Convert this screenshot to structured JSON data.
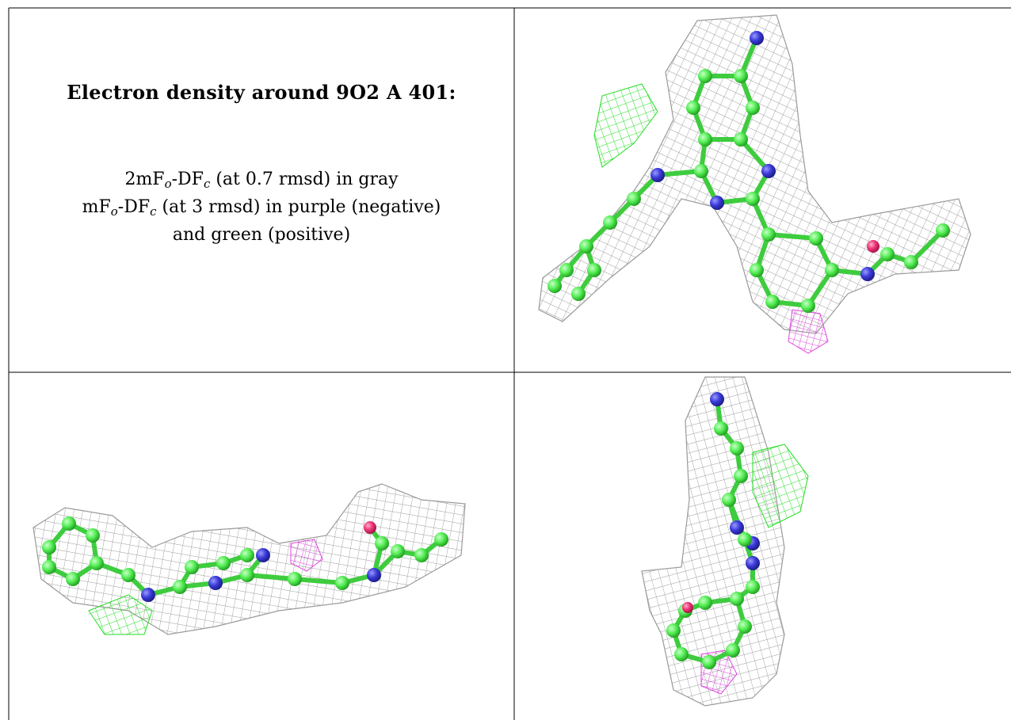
{
  "caption": {
    "title": "Electron density around 9O2 A 401:",
    "line1": {
      "prefix": "2mF",
      "o": "o",
      "mid": "-DF",
      "c": "c",
      "suffix": " (at 0.7 rmsd) in gray"
    },
    "line2": {
      "prefix": "mF",
      "o": "o",
      "mid": "-DF",
      "c": "c",
      "suffix": " (at 3 rmsd) in purple (negative)"
    },
    "line3": "and green (positive)"
  },
  "colors": {
    "mesh_2fofc": "#9a9a9a",
    "mesh_positive": "#22dd22",
    "mesh_negative": "#dd44dd",
    "carbon": "#55ee55",
    "nitrogen": "#3a3ad8",
    "oxygen": "#ee3377",
    "grid_line": "#000000"
  },
  "panels": [
    {
      "name": "view-top-right",
      "icon": "ligand-density-view-icon"
    },
    {
      "name": "view-bottom-left",
      "icon": "ligand-density-view-icon"
    },
    {
      "name": "view-bottom-right",
      "icon": "ligand-density-view-icon"
    }
  ]
}
